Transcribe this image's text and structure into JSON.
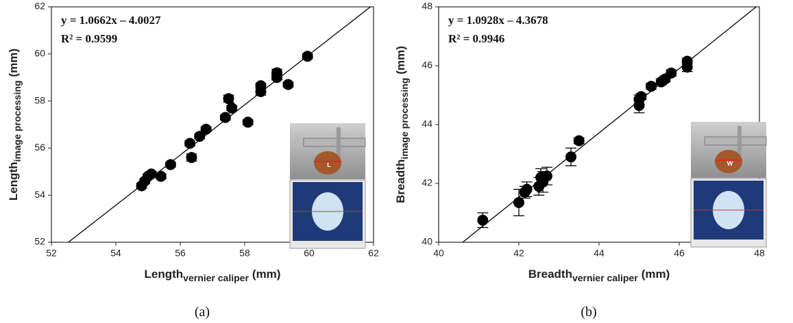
{
  "chart_data": [
    {
      "type": "scatter",
      "fit": {
        "slope": 1.0662,
        "intercept": -4.0027,
        "label": "y = 1.0662x – 4.0027",
        "r2_label": "R² = 0.9599"
      },
      "xlabel": [
        "Length",
        "vernier caliper",
        "(mm)"
      ],
      "ylabel": [
        "Length",
        "image processing",
        "(mm)"
      ],
      "caption": "(a)",
      "inset_label": "L",
      "color": "#000000",
      "xlim": [
        52,
        62
      ],
      "ylim": [
        52,
        62
      ],
      "xticks": [
        52,
        54,
        56,
        58,
        60,
        62
      ],
      "yticks": [
        52,
        54,
        56,
        58,
        60,
        62
      ],
      "x": [
        54.8,
        54.9,
        55.0,
        55.1,
        55.4,
        55.7,
        56.3,
        56.35,
        56.6,
        56.8,
        57.4,
        57.5,
        57.6,
        58.1,
        58.5,
        58.5,
        59.0,
        59.0,
        59.35,
        59.95
      ],
      "values": [
        54.4,
        54.6,
        54.8,
        54.9,
        54.8,
        55.3,
        56.2,
        55.6,
        56.5,
        56.8,
        57.3,
        58.1,
        57.7,
        57.1,
        58.4,
        58.65,
        59.0,
        59.2,
        58.7,
        59.9
      ],
      "errors": [
        0.1,
        0.1,
        0.1,
        0.1,
        0.1,
        0.1,
        0.1,
        0.15,
        0.1,
        0.1,
        0.1,
        0.15,
        0.1,
        0.1,
        0.15,
        0.1,
        0.1,
        0.15,
        0.1,
        0.1
      ]
    },
    {
      "type": "scatter",
      "fit": {
        "slope": 1.0928,
        "intercept": -4.3678,
        "label": "y = 1.0928x – 4.3678",
        "r2_label": "R² = 0.9946"
      },
      "xlabel": [
        "Breadth",
        "vernier caliper",
        "(mm)"
      ],
      "ylabel": [
        "Breadth",
        "image processing",
        "(mm)"
      ],
      "caption": "(b)",
      "inset_label": "W",
      "color": "#000000",
      "xlim": [
        40,
        48
      ],
      "ylim": [
        40,
        48
      ],
      "xticks": [
        40,
        42,
        44,
        46,
        48
      ],
      "yticks": [
        40,
        42,
        44,
        46,
        48
      ],
      "x": [
        41.1,
        42.0,
        42.15,
        42.2,
        42.5,
        42.55,
        42.6,
        42.7,
        43.3,
        43.5,
        45.0,
        45.0,
        45.05,
        45.3,
        45.55,
        45.65,
        45.8,
        46.2,
        46.2
      ],
      "values": [
        40.75,
        41.35,
        41.7,
        41.8,
        41.9,
        42.2,
        42.05,
        42.25,
        42.9,
        43.45,
        44.65,
        44.85,
        44.95,
        45.3,
        45.45,
        45.55,
        45.75,
        45.95,
        46.15
      ],
      "errors": [
        0.25,
        0.45,
        0.2,
        0.25,
        0.3,
        0.3,
        0.35,
        0.3,
        0.3,
        0.1,
        0.25,
        0.15,
        0.1,
        0.1,
        0.1,
        0.1,
        0.1,
        0.15,
        0.1
      ]
    }
  ]
}
